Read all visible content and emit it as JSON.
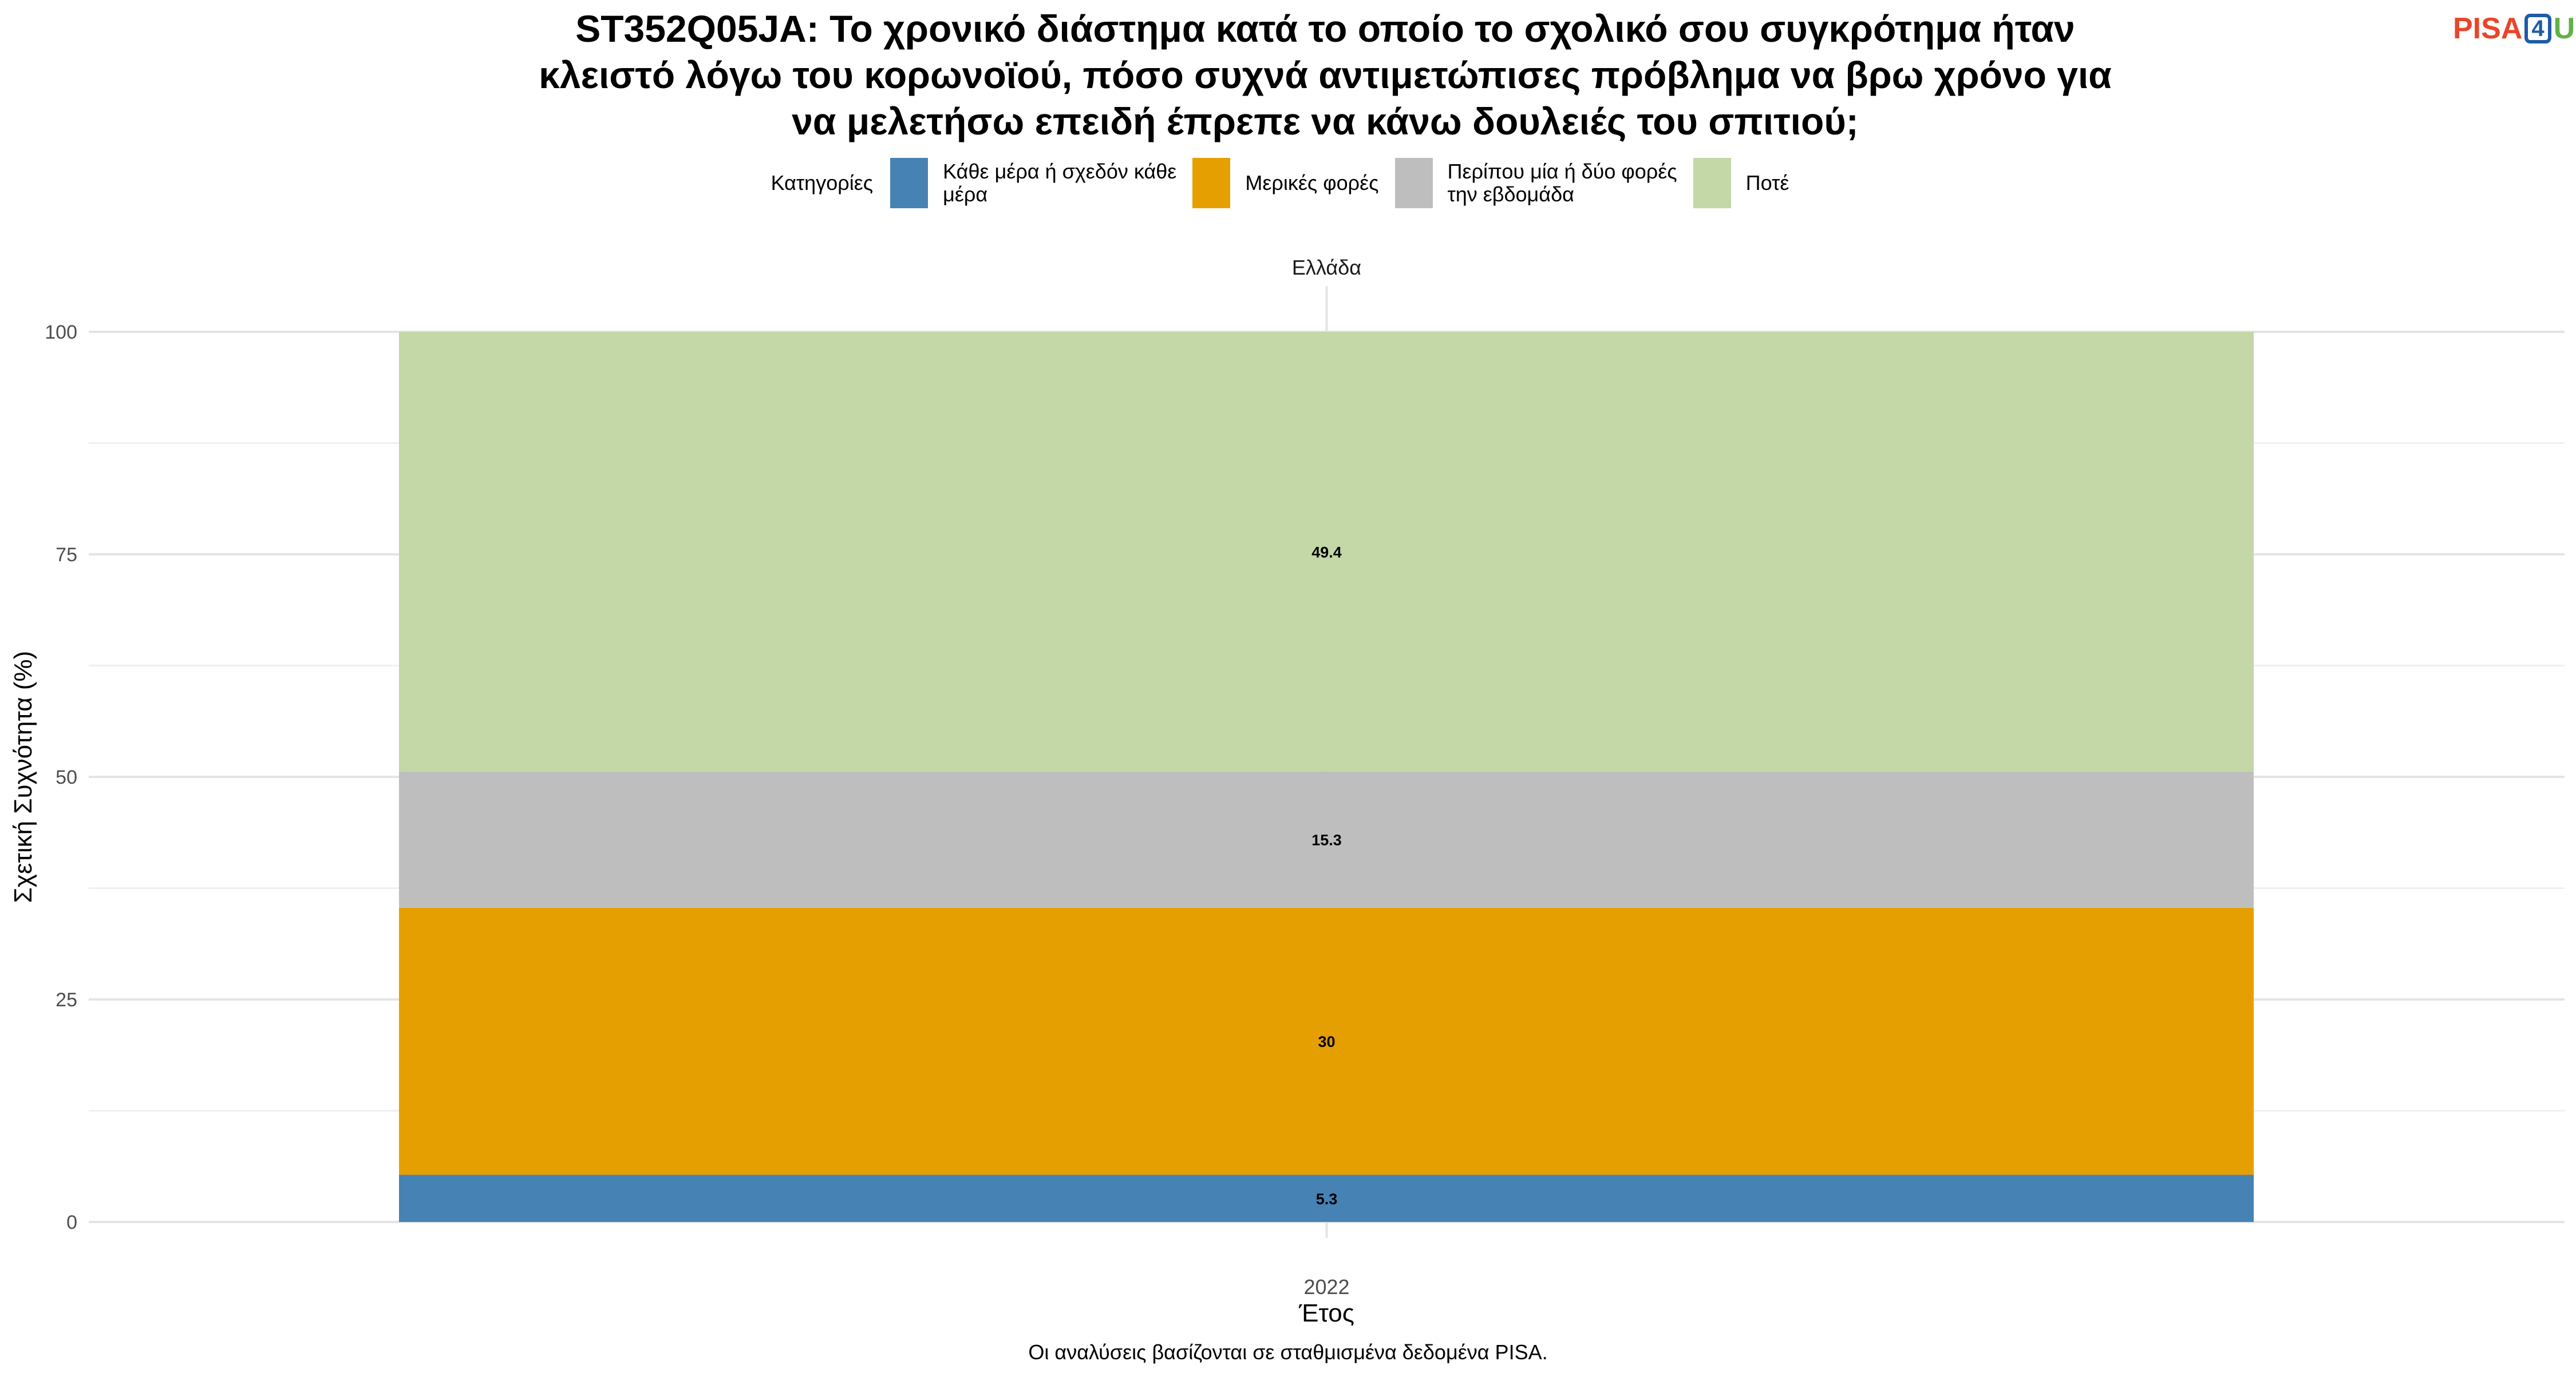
{
  "title_lines": [
    "ST352Q05JA: Το χρονικό διάστημα κατά το οποίο το σχολικό σου συγκρότημα ήταν",
    "κλειστό λόγω του κορωνοϊού, πόσο συχνά αντιμετώπισες πρόβλημα να βρω χρόνο για",
    "να μελετήσω επειδή έπρεπε να κάνω δουλειές του σπιτιού;"
  ],
  "logo": {
    "part1": "PISA",
    "part2": "4",
    "part3": "U"
  },
  "legend": {
    "title": "Κατηγορίες"
  },
  "footer": "Οι αναλύσεις βασίζονται σε σταθμισμένα δεδομένα PISA.",
  "chart_data": {
    "type": "bar",
    "stacked": true,
    "title": "ST352Q05JA: Το χρονικό διάστημα κατά το οποίο το σχολικό σου συγκρότημα ήταν κλειστό λόγω του κορωνοϊού, πόσο συχνά αντιμετώπισες πρόβλημα να βρω χρόνο για να μελετήσω επειδή έπρεπε να κάνω δουλειές του σπιτιού;",
    "facet": "Ελλάδα",
    "categories": [
      "2022"
    ],
    "xlabel": "Έτος",
    "ylabel": "Σχετική Συχνότητα (%)",
    "ylim": [
      0,
      100
    ],
    "yticks": [
      0,
      25,
      50,
      75,
      100
    ],
    "grid": true,
    "legend_title": "Κατηγορίες",
    "legend_position": "top",
    "series": [
      {
        "name": "Κάθε μέρα ή σχεδόν κάθε\nμέρα",
        "color": "#4682b4",
        "values": [
          5.3
        ]
      },
      {
        "name": "Μερικές φορές",
        "color": "#e69f00",
        "values": [
          30
        ]
      },
      {
        "name": "Περίπου μία ή δύο φορές\nτην εβδομάδα",
        "color": "#bebebe",
        "values": [
          15.3
        ]
      },
      {
        "name": "Ποτέ",
        "color": "#c3d7a7",
        "values": [
          49.4
        ]
      }
    ]
  }
}
